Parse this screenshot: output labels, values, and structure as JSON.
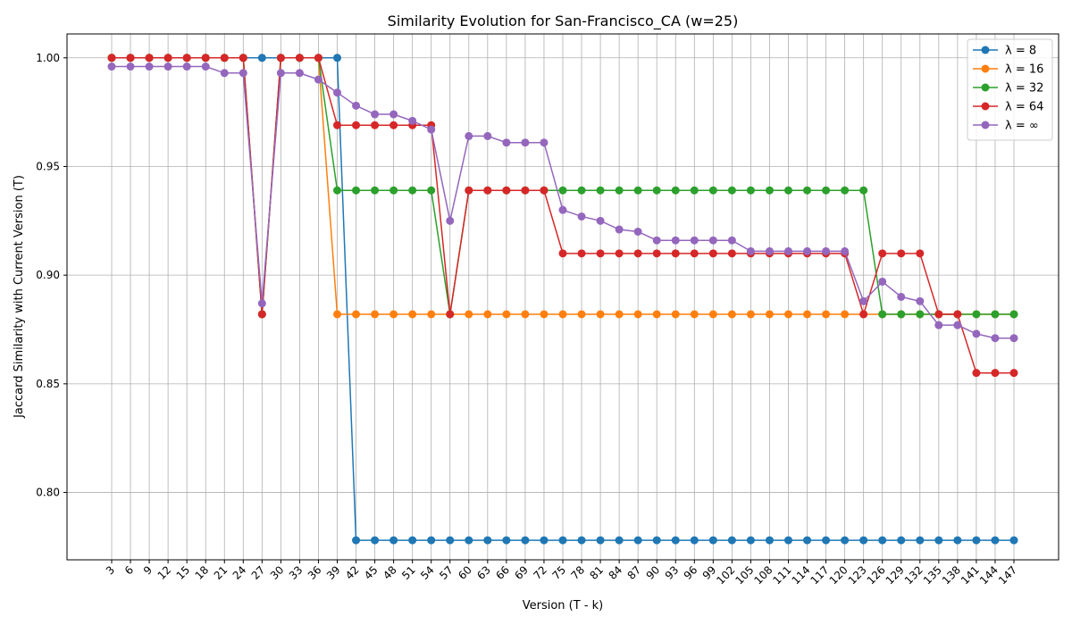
{
  "chart_data": {
    "type": "line",
    "title": "Similarity Evolution for San-Francisco_CA (w=25)",
    "xlabel": "Version (T - k)",
    "ylabel": "Jaccard Similarity with Current Version (T)",
    "x": [
      3,
      6,
      9,
      12,
      15,
      18,
      21,
      24,
      27,
      30,
      33,
      36,
      39,
      42,
      45,
      48,
      51,
      54,
      57,
      60,
      63,
      66,
      69,
      72,
      75,
      78,
      81,
      84,
      87,
      90,
      93,
      96,
      99,
      102,
      105,
      108,
      111,
      114,
      117,
      120,
      123,
      126,
      129,
      132,
      135,
      138,
      141,
      144,
      147
    ],
    "ylim": [
      0.769,
      1.011
    ],
    "yticks": [
      0.8,
      0.85,
      0.9,
      0.95,
      1.0
    ],
    "ytick_labels": [
      "0.80",
      "0.85",
      "0.90",
      "0.95",
      "1.00"
    ],
    "grid": true,
    "legend_position": "top-right",
    "series": [
      {
        "name": "λ = 8",
        "color": "#1f77b4",
        "values": [
          1,
          1,
          1,
          1,
          1,
          1,
          1,
          1,
          1,
          1,
          1,
          1,
          1,
          0.778,
          0.778,
          0.778,
          0.778,
          0.778,
          0.778,
          0.778,
          0.778,
          0.778,
          0.778,
          0.778,
          0.778,
          0.778,
          0.778,
          0.778,
          0.778,
          0.778,
          0.778,
          0.778,
          0.778,
          0.778,
          0.778,
          0.778,
          0.778,
          0.778,
          0.778,
          0.778,
          0.778,
          0.778,
          0.778,
          0.778,
          0.778,
          0.778,
          0.778,
          0.778,
          0.778
        ]
      },
      {
        "name": "λ = 16",
        "color": "#ff7f0e",
        "values": [
          1,
          1,
          1,
          1,
          1,
          1,
          1,
          1,
          0.882,
          1,
          1,
          1,
          0.882,
          0.882,
          0.882,
          0.882,
          0.882,
          0.882,
          0.882,
          0.882,
          0.882,
          0.882,
          0.882,
          0.882,
          0.882,
          0.882,
          0.882,
          0.882,
          0.882,
          0.882,
          0.882,
          0.882,
          0.882,
          0.882,
          0.882,
          0.882,
          0.882,
          0.882,
          0.882,
          0.882,
          0.882,
          0.882,
          0.882,
          0.882,
          0.882,
          0.882,
          0.882,
          0.882,
          0.882
        ]
      },
      {
        "name": "λ = 32",
        "color": "#2ca02c",
        "values": [
          1,
          1,
          1,
          1,
          1,
          1,
          1,
          1,
          0.882,
          1,
          1,
          1,
          0.939,
          0.939,
          0.939,
          0.939,
          0.939,
          0.939,
          0.882,
          0.939,
          0.939,
          0.939,
          0.939,
          0.939,
          0.939,
          0.939,
          0.939,
          0.939,
          0.939,
          0.939,
          0.939,
          0.939,
          0.939,
          0.939,
          0.939,
          0.939,
          0.939,
          0.939,
          0.939,
          0.939,
          0.939,
          0.882,
          0.882,
          0.882,
          0.882,
          0.882,
          0.882,
          0.882,
          0.882
        ]
      },
      {
        "name": "λ = 64",
        "color": "#d62728",
        "values": [
          1,
          1,
          1,
          1,
          1,
          1,
          1,
          1,
          0.882,
          1,
          1,
          1,
          0.969,
          0.969,
          0.969,
          0.969,
          0.969,
          0.969,
          0.882,
          0.939,
          0.939,
          0.939,
          0.939,
          0.939,
          0.91,
          0.91,
          0.91,
          0.91,
          0.91,
          0.91,
          0.91,
          0.91,
          0.91,
          0.91,
          0.91,
          0.91,
          0.91,
          0.91,
          0.91,
          0.91,
          0.882,
          0.91,
          0.91,
          0.91,
          0.882,
          0.882,
          0.855,
          0.855,
          0.855
        ]
      },
      {
        "name": "λ = ∞",
        "color": "#9467bd",
        "values": [
          0.996,
          0.996,
          0.996,
          0.996,
          0.996,
          0.996,
          0.993,
          0.993,
          0.887,
          0.993,
          0.993,
          0.99,
          0.984,
          0.978,
          0.974,
          0.974,
          0.971,
          0.967,
          0.925,
          0.964,
          0.964,
          0.961,
          0.961,
          0.961,
          0.93,
          0.927,
          0.925,
          0.921,
          0.92,
          0.916,
          0.916,
          0.916,
          0.916,
          0.916,
          0.911,
          0.911,
          0.911,
          0.911,
          0.911,
          0.911,
          0.888,
          0.897,
          0.89,
          0.888,
          0.877,
          0.877,
          0.873,
          0.871,
          0.871
        ]
      }
    ]
  }
}
